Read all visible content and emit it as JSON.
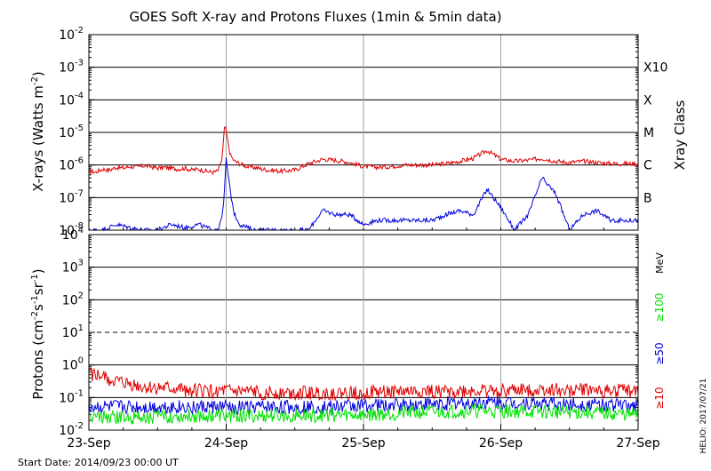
{
  "chart_data": [
    {
      "type": "line",
      "title": "GOES Soft X-ray and Protons Fluxes   (1min & 5min data)",
      "ylabel": "X-rays (Watts m",
      "ylabel_sup": "-2",
      "ylabel_end": ")",
      "y_scale": "log",
      "ylim": [
        1e-08,
        0.01
      ],
      "y_ticks": [
        {
          "base": "10",
          "exp": "-8",
          "value": 1e-08
        },
        {
          "base": "10",
          "exp": "-7",
          "value": 1e-07
        },
        {
          "base": "10",
          "exp": "-6",
          "value": 1e-06
        },
        {
          "base": "10",
          "exp": "-5",
          "value": 1e-05
        },
        {
          "base": "10",
          "exp": "-4",
          "value": 0.0001
        },
        {
          "base": "10",
          "exp": "-3",
          "value": 0.001
        },
        {
          "base": "10",
          "exp": "-2",
          "value": 0.01
        }
      ],
      "right_axis_title": "Xray Class",
      "classes": [
        {
          "label": "B",
          "value": 1e-07
        },
        {
          "label": "C",
          "value": 1e-06
        },
        {
          "label": "M",
          "value": 1e-05
        },
        {
          "label": "X",
          "value": 0.0001
        },
        {
          "label": "X10",
          "value": 0.001
        }
      ],
      "grid": true,
      "series": [
        {
          "color": "#e00000",
          "x": [
            0,
            0.05,
            0.1,
            0.15,
            0.2,
            0.25,
            0.3,
            0.35,
            0.4,
            0.45,
            0.5,
            0.55,
            0.6,
            0.65,
            0.7,
            0.75,
            0.8,
            0.85,
            0.9,
            0.94,
            0.97,
            0.99,
            1.01,
            1.03,
            1.06,
            1.1,
            1.15,
            1.2,
            1.3,
            1.4,
            1.5,
            1.6,
            1.7,
            1.8,
            1.9,
            2.0,
            2.1,
            2.2,
            2.3,
            2.4,
            2.5,
            2.6,
            2.7,
            2.8,
            2.9,
            3.0,
            3.1,
            3.2,
            3.3,
            3.4,
            3.5,
            3.6,
            3.7,
            3.8,
            3.9,
            4.0
          ],
          "values": [
            6.5e-07,
            6e-07,
            7.5e-07,
            7e-07,
            8.5e-07,
            8e-07,
            9e-07,
            8.5e-07,
            9.5e-07,
            9e-07,
            8e-07,
            8.5e-07,
            8e-07,
            7.5e-07,
            8e-07,
            7e-07,
            7.5e-07,
            6.5e-07,
            6e-07,
            6.5e-07,
            1.5e-06,
            1.8e-05,
            6e-06,
            2e-06,
            1.3e-06,
            1.1e-06,
            9e-07,
            8.5e-07,
            7e-07,
            6.5e-07,
            7e-07,
            1.1e-06,
            1.5e-06,
            1.4e-06,
            1.2e-06,
            9e-07,
            8.5e-07,
            9e-07,
            1e-06,
            1e-06,
            1e-06,
            1.1e-06,
            1.3e-06,
            1.6e-06,
            2.8e-06,
            1.5e-06,
            1.3e-06,
            1.4e-06,
            1.6e-06,
            1.3e-06,
            1.2e-06,
            1.3e-06,
            1.2e-06,
            1.1e-06,
            1.1e-06,
            1.1e-06
          ]
        },
        {
          "color": "#0000e0",
          "x": [
            0,
            0.1,
            0.2,
            0.3,
            0.4,
            0.5,
            0.6,
            0.7,
            0.8,
            0.9,
            0.95,
            0.98,
            1.0,
            1.03,
            1.06,
            1.1,
            1.2,
            1.3,
            1.4,
            1.5,
            1.6,
            1.7,
            1.8,
            1.9,
            2.0,
            2.1,
            2.2,
            2.3,
            2.4,
            2.5,
            2.6,
            2.7,
            2.8,
            2.9,
            3.0,
            3.1,
            3.2,
            3.3,
            3.4,
            3.5,
            3.6,
            3.7,
            3.8,
            3.9,
            4.0
          ],
          "values": [
            1e-08,
            1e-08,
            1.5e-08,
            1.2e-08,
            1e-08,
            1e-08,
            1.5e-08,
            1.2e-08,
            1.5e-08,
            1e-08,
            1.2e-08,
            5e-08,
            1.5e-06,
            1.5e-07,
            3e-08,
            1.5e-08,
            1e-08,
            1e-08,
            1e-08,
            1e-08,
            1e-08,
            4e-08,
            3e-08,
            3e-08,
            1.5e-08,
            2e-08,
            2e-08,
            2e-08,
            2e-08,
            2e-08,
            3e-08,
            4e-08,
            3e-08,
            1.8e-07,
            5e-08,
            1e-08,
            3e-08,
            4e-07,
            1.3e-07,
            1e-08,
            3e-08,
            4e-08,
            2e-08,
            2e-08,
            2e-08
          ]
        }
      ]
    },
    {
      "type": "line",
      "ylabel": "Protons (cm",
      "ylabel_sup1": "-2",
      "ylabel_mid": "s",
      "ylabel_sup2": "-1",
      "ylabel_mid2": "sr",
      "ylabel_sup3": "-1",
      "ylabel_end": ")",
      "y_scale": "log",
      "ylim": [
        0.01,
        10000
      ],
      "y_ticks": [
        {
          "base": "10",
          "exp": "-2",
          "value": 0.01
        },
        {
          "base": "10",
          "exp": "-1",
          "value": 0.1
        },
        {
          "base": "10",
          "exp": "0",
          "value": 1
        },
        {
          "base": "10",
          "exp": "1",
          "value": 10
        },
        {
          "base": "10",
          "exp": "2",
          "value": 100
        },
        {
          "base": "10",
          "exp": "3",
          "value": 1000
        },
        {
          "base": "10",
          "exp": "4",
          "value": 10000
        }
      ],
      "threshold": 10,
      "units": "MeV",
      "series": [
        {
          "name": "≥10",
          "color": "#e00000",
          "x": [
            0,
            0.1,
            0.2,
            0.3,
            0.4,
            0.6,
            0.8,
            1.0,
            1.2,
            1.5,
            1.8,
            2.0,
            2.3,
            2.6,
            3.0,
            3.3,
            3.6,
            4.0
          ],
          "values": [
            0.55,
            0.42,
            0.3,
            0.25,
            0.2,
            0.18,
            0.16,
            0.15,
            0.14,
            0.14,
            0.13,
            0.14,
            0.15,
            0.15,
            0.16,
            0.17,
            0.17,
            0.16
          ]
        },
        {
          "name": "≥50",
          "color": "#0000e0",
          "x": [
            0,
            0.4,
            0.8,
            1.2,
            1.6,
            2.0,
            2.4,
            2.8,
            3.2,
            3.6,
            4.0
          ],
          "values": [
            0.05,
            0.05,
            0.05,
            0.05,
            0.05,
            0.055,
            0.06,
            0.07,
            0.065,
            0.06,
            0.06
          ]
        },
        {
          "name": "≥100",
          "color": "#00e000",
          "x": [
            0,
            0.4,
            0.8,
            1.2,
            1.6,
            2.0,
            2.4,
            2.8,
            3.2,
            3.6,
            4.0
          ],
          "values": [
            0.025,
            0.025,
            0.028,
            0.027,
            0.028,
            0.03,
            0.035,
            0.04,
            0.038,
            0.035,
            0.03
          ]
        }
      ]
    }
  ],
  "x_axis": {
    "tick_labels": [
      "23-Sep",
      "24-Sep",
      "25-Sep",
      "26-Sep",
      "27-Sep"
    ],
    "xlim": [
      0,
      4
    ]
  },
  "start_date": "Start Date: 2014/09/23 00:00 UT",
  "credit": "HELIO: 2017/07/21"
}
